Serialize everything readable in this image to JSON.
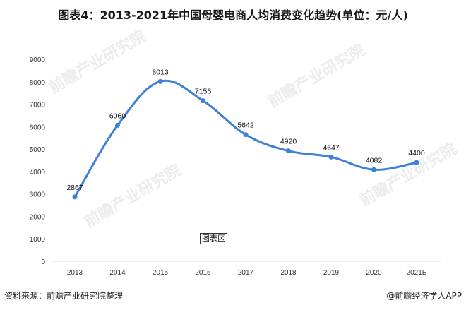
{
  "title": "图表4：2013-2021年中国母婴电商人均消费变化趋势(单位：元/人)",
  "plot_area_label": "图表区",
  "footer": {
    "source": "资料来源：前瞻产业研究院整理",
    "credit": "@前瞻经济学人APP"
  },
  "watermark": "前瞻产业研究院",
  "colors": {
    "line": "#3f7fd6",
    "axis": "#d9d9d9",
    "text": "#333333"
  },
  "chart_data": {
    "type": "line",
    "title": "图表4：2013-2021年中国母婴电商人均消费变化趋势(单位：元/人)",
    "xlabel": "",
    "ylabel": "",
    "categories": [
      "2013",
      "2014",
      "2015",
      "2016",
      "2017",
      "2018",
      "2019",
      "2020",
      "2021E"
    ],
    "series": [
      {
        "name": "人均消费(元/人)",
        "values": [
          2867,
          6060,
          8013,
          7156,
          5642,
          4920,
          4647,
          4082,
          4400
        ]
      }
    ],
    "yticks": [
      0,
      1000,
      2000,
      3000,
      4000,
      5000,
      6000,
      7000,
      8000,
      9000
    ],
    "ylim": [
      0,
      9000
    ],
    "grid": false,
    "smooth": true,
    "data_labels": true,
    "legend": "none"
  }
}
